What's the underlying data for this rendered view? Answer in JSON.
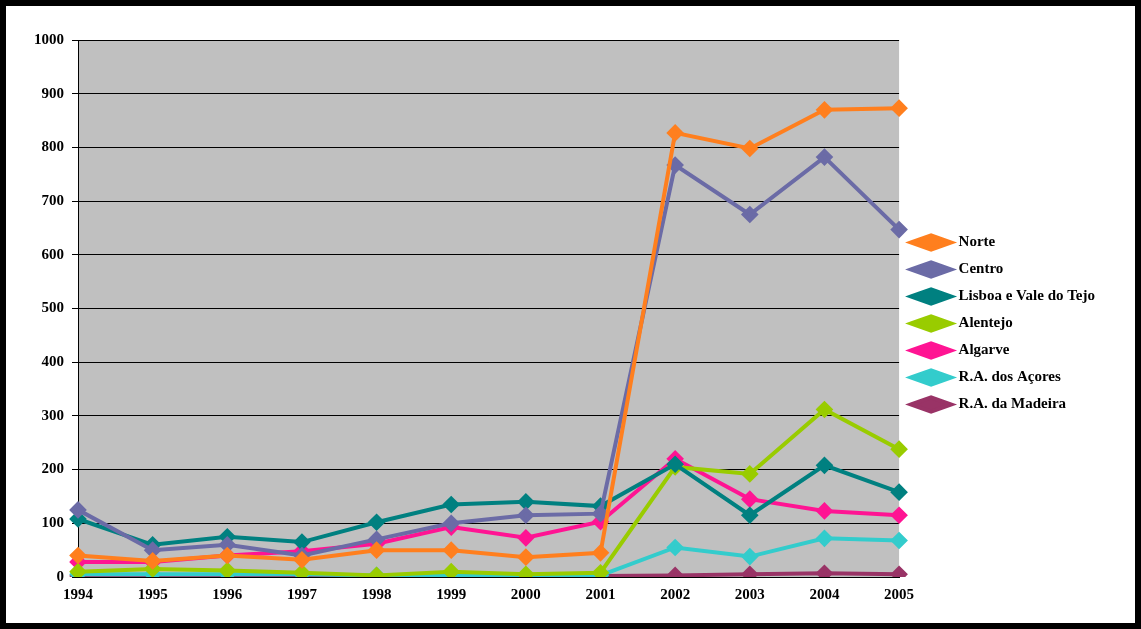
{
  "chart_data": {
    "type": "line",
    "categories": [
      "1994",
      "1995",
      "1996",
      "1997",
      "1998",
      "1999",
      "2000",
      "2001",
      "2002",
      "2003",
      "2004",
      "2005"
    ],
    "series": [
      {
        "name": "Norte",
        "color": "#ff7f1e",
        "marker": "diamond",
        "values": [
          40,
          30,
          40,
          32,
          50,
          50,
          37,
          45,
          827,
          798,
          870,
          873
        ]
      },
      {
        "name": "Centro",
        "color": "#6b6ba6",
        "marker": "diamond",
        "values": [
          125,
          50,
          60,
          40,
          70,
          100,
          115,
          118,
          767,
          675,
          782,
          647
        ]
      },
      {
        "name": "Lisboa e Vale do Tejo",
        "color": "#008080",
        "marker": "diamond",
        "values": [
          108,
          60,
          75,
          65,
          102,
          135,
          140,
          132,
          210,
          115,
          208,
          158
        ]
      },
      {
        "name": "Alentejo",
        "color": "#99cc00",
        "marker": "diamond",
        "values": [
          10,
          15,
          12,
          8,
          3,
          10,
          5,
          8,
          205,
          192,
          312,
          238
        ]
      },
      {
        "name": "Algarve",
        "color": "#ff1493",
        "marker": "diamond",
        "values": [
          28,
          28,
          40,
          48,
          62,
          93,
          73,
          103,
          220,
          145,
          123,
          115
        ]
      },
      {
        "name": "R.A. dos Açores",
        "color": "#33cccc",
        "marker": "diamond",
        "values": [
          5,
          5,
          5,
          5,
          3,
          3,
          3,
          3,
          55,
          38,
          72,
          68
        ]
      },
      {
        "name": "R.A. da Madeira",
        "color": "#993366",
        "marker": "diamond",
        "values": [
          2,
          2,
          2,
          2,
          2,
          2,
          2,
          2,
          3,
          5,
          7,
          5
        ]
      }
    ],
    "ylim": [
      0,
      1000
    ],
    "yticks": [
      0,
      100,
      200,
      300,
      400,
      500,
      600,
      700,
      800,
      900,
      1000
    ],
    "grid": true,
    "legend": "right"
  }
}
